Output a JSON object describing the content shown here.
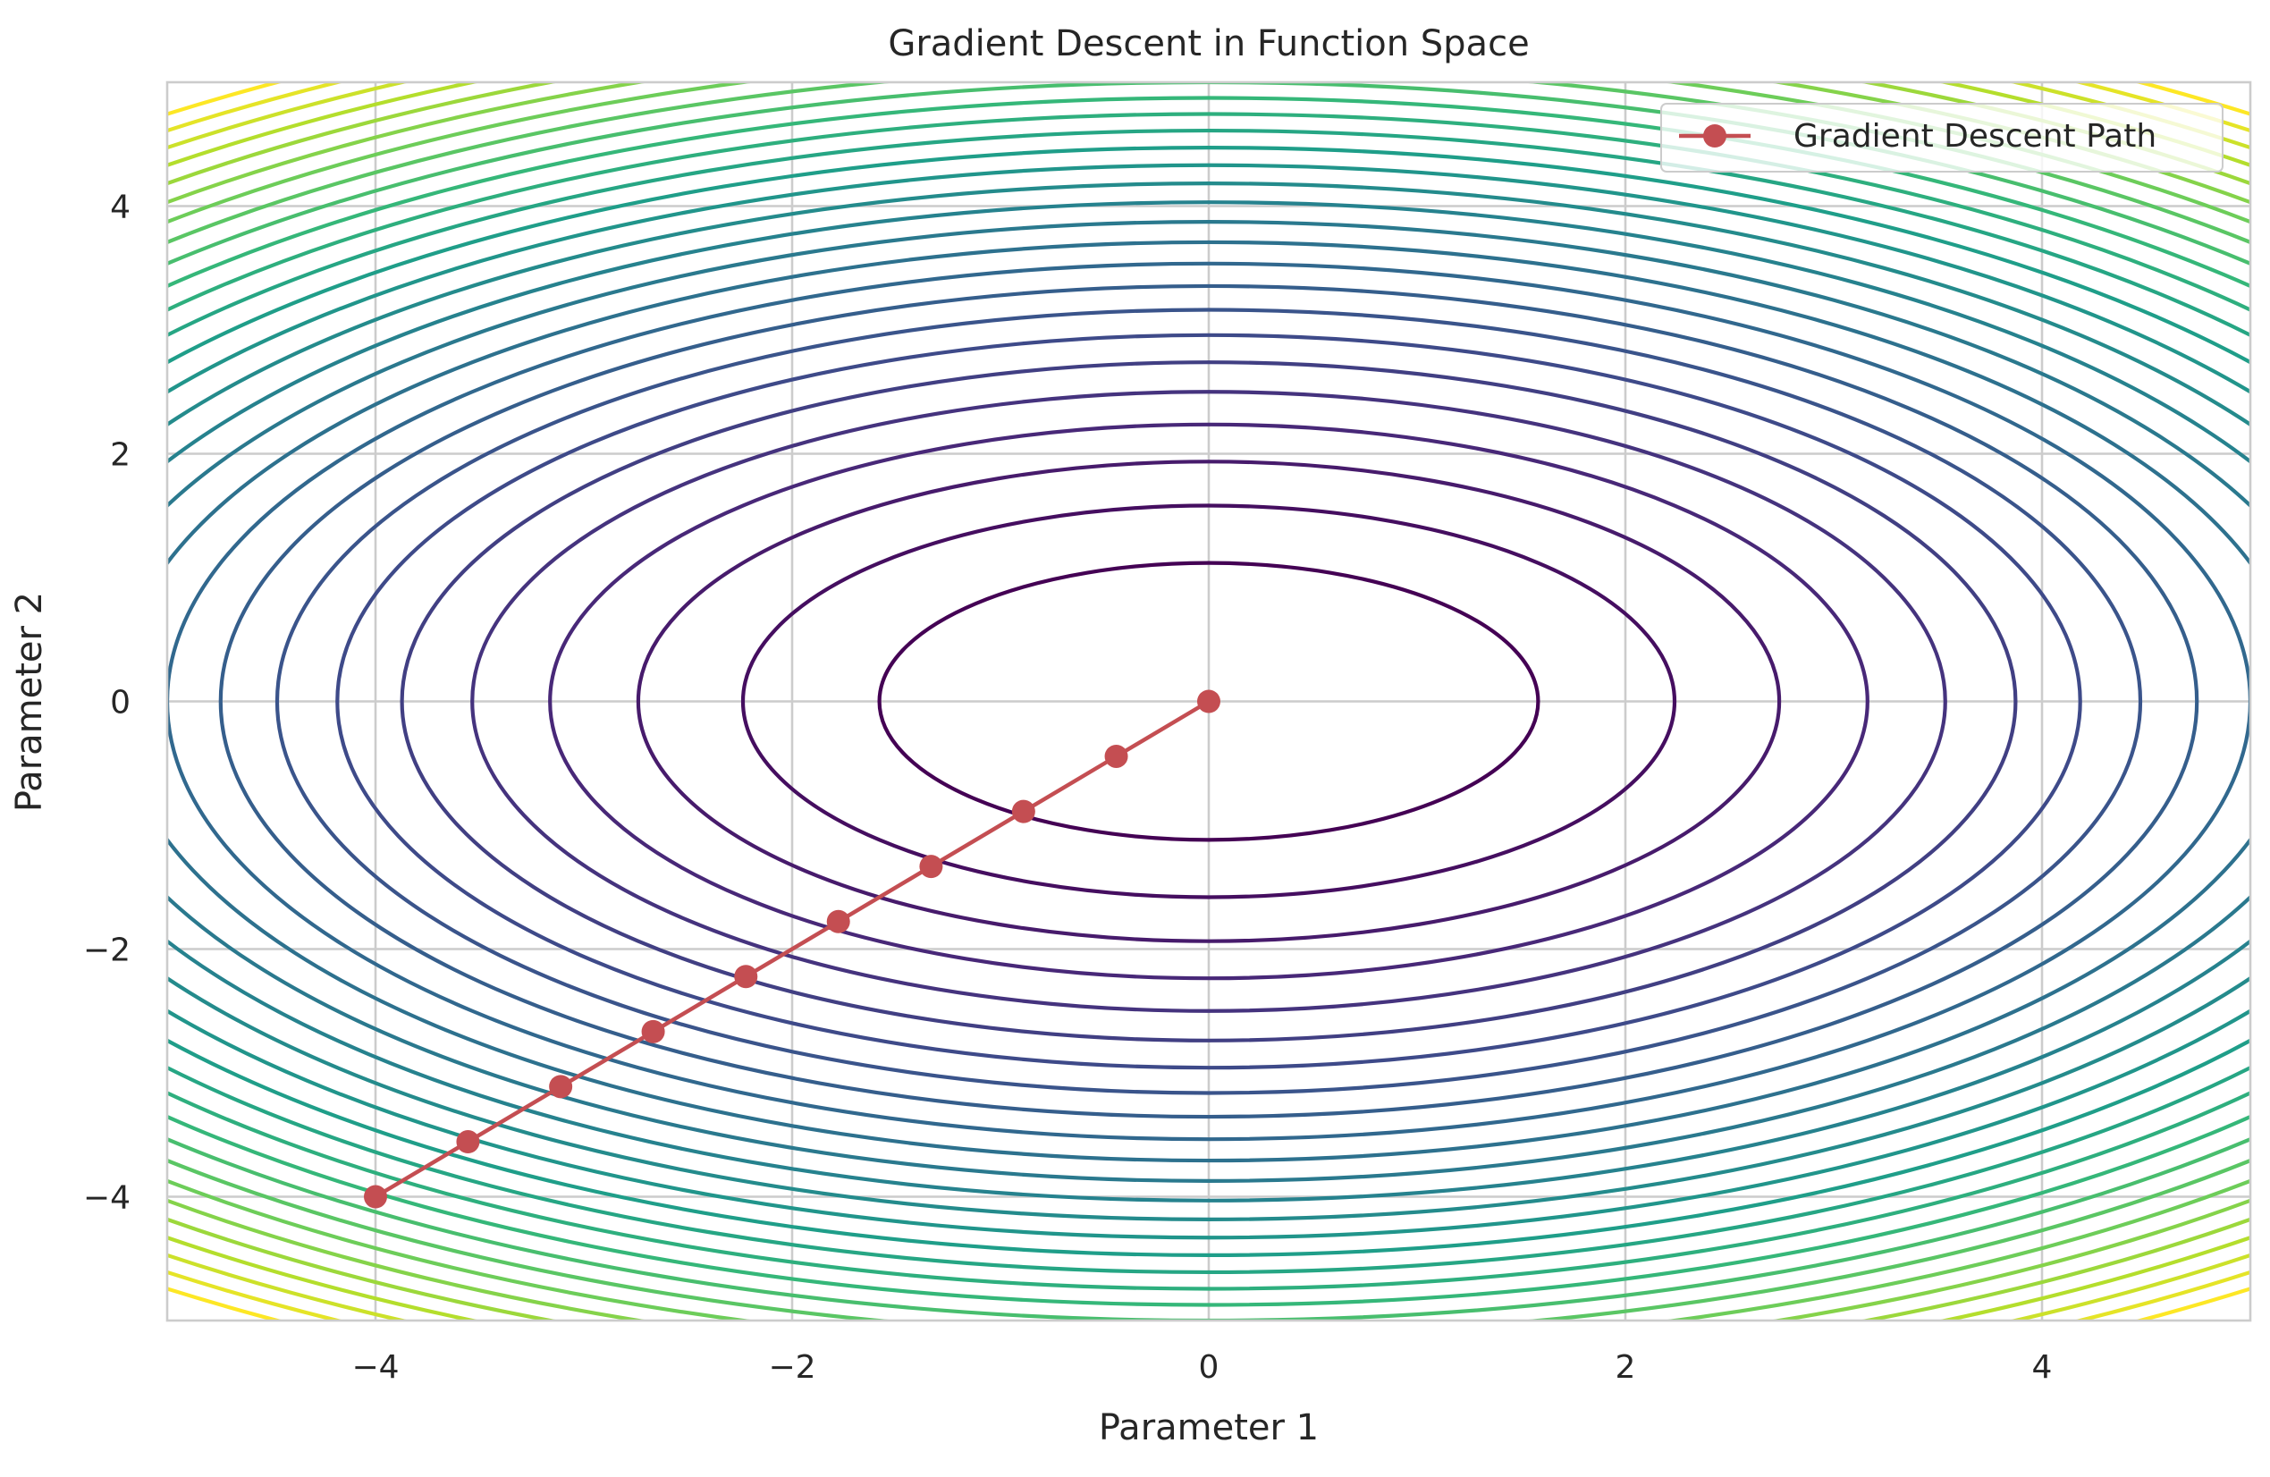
{
  "chart_data": {
    "type": "line",
    "title": "Gradient Descent in Function Space",
    "xlabel": "Parameter 1",
    "ylabel": "Parameter 2",
    "xlim": [
      -5,
      5
    ],
    "ylim": [
      -5,
      5
    ],
    "xticks": [
      -4,
      -2,
      0,
      2,
      4
    ],
    "yticks": [
      -4,
      -2,
      0,
      2,
      4
    ],
    "xtick_labels": [
      "−4",
      "−2",
      "0",
      "2",
      "4"
    ],
    "ytick_labels": [
      "−4",
      "−2",
      "0",
      "2",
      "4"
    ],
    "grid": true,
    "legend_position": "top-right",
    "contour": {
      "function": "x^2 + 2*y^2",
      "colormap": "viridis",
      "levels": [
        2.5,
        5,
        7.5,
        10,
        12.5,
        15,
        17.5,
        20,
        22.5,
        25,
        27.5,
        30,
        32.5,
        35,
        37.5,
        40,
        42.5,
        45,
        47.5,
        50,
        52.5,
        55,
        57.5,
        60,
        62.5,
        65,
        67.5,
        70
      ]
    },
    "series": [
      {
        "name": "Gradient Descent Path",
        "color": "#c44e52",
        "marker": "circle",
        "x": [
          -4.0,
          -3.556,
          -3.111,
          -2.667,
          -2.222,
          -1.778,
          -1.333,
          -0.889,
          -0.444,
          0.0
        ],
        "y": [
          -4.0,
          -3.556,
          -3.111,
          -2.667,
          -2.222,
          -1.778,
          -1.333,
          -0.889,
          -0.444,
          0.0
        ]
      }
    ]
  }
}
